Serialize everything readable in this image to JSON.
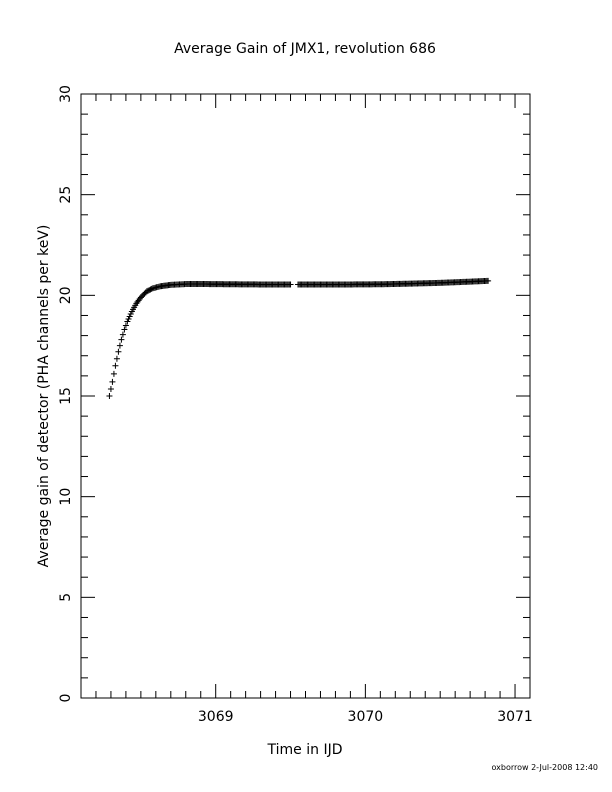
{
  "chart_data": {
    "type": "scatter",
    "title": "Average Gain of JMX1, revolution 686",
    "xlabel": "Time in IJD",
    "ylabel": "Average gain of detector (PHA channels per keV)",
    "xlim": [
      3068.1,
      3071.1
    ],
    "ylim": [
      0,
      30
    ],
    "x_ticks": [
      3069,
      3070,
      3071
    ],
    "x_tick_labels": [
      "3069",
      "3070",
      "3071"
    ],
    "y_ticks": [
      0,
      5,
      10,
      15,
      20,
      25,
      30
    ],
    "y_tick_labels": [
      "0",
      "5",
      "10",
      "15",
      "20",
      "25",
      "30"
    ],
    "grid": false,
    "marker": "plus",
    "series": [
      {
        "x": [
          3068.29,
          3068.31,
          3068.33,
          3068.35,
          3068.37,
          3068.39,
          3068.41,
          3068.44,
          3068.47,
          3068.5,
          3068.54,
          3068.58,
          3068.63,
          3068.7,
          3068.8,
          3068.95,
          3069.1,
          3069.3,
          3069.5,
          3069.55,
          3069.7,
          3069.9,
          3070.1,
          3070.3,
          3070.5,
          3070.7,
          3070.82
        ],
        "y": [
          15.0,
          15.7,
          16.5,
          17.2,
          17.8,
          18.3,
          18.7,
          19.2,
          19.6,
          19.9,
          20.2,
          20.35,
          20.45,
          20.52,
          20.56,
          20.56,
          20.55,
          20.54,
          20.54,
          20.54,
          20.54,
          20.54,
          20.55,
          20.58,
          20.62,
          20.68,
          20.72
        ]
      }
    ]
  },
  "footer": "oxborrow  2-Jul-2008 12:40"
}
